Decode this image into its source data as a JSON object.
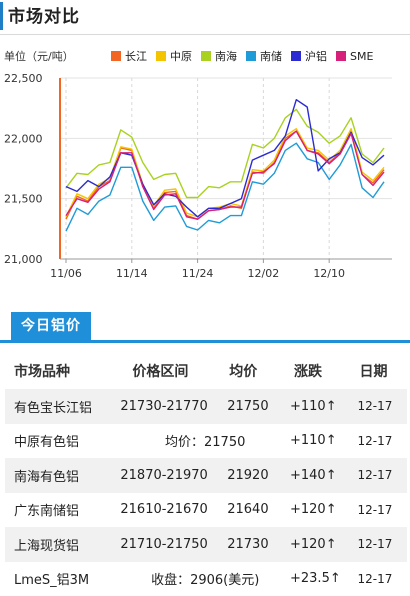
{
  "header": {
    "title": "市场对比"
  },
  "chart": {
    "unit_label": "单位（元/吨）",
    "legend": [
      {
        "name": "长江",
        "color": "#f26522"
      },
      {
        "name": "中原",
        "color": "#f5c400"
      },
      {
        "name": "南海",
        "color": "#a8d21f"
      },
      {
        "name": "南储",
        "color": "#1f9bd8"
      },
      {
        "name": "沪铝",
        "color": "#2b2bd1"
      },
      {
        "name": "SME",
        "color": "#d6207a"
      }
    ]
  },
  "chart_data": {
    "type": "line",
    "ylabel": "单位（元/吨）",
    "ylim": [
      21000,
      22500
    ],
    "yticks": [
      "21,000",
      "21,500",
      "22,000",
      "22,500"
    ],
    "ytick_values": [
      21000,
      21500,
      22000,
      22500
    ],
    "xtick_labels": [
      "11/06",
      "11/14",
      "11/24",
      "12/02",
      "12/10"
    ],
    "xtick_index": [
      0,
      6,
      12,
      18,
      24
    ],
    "grid": true,
    "legend_position": "top",
    "series": [
      {
        "name": "长江",
        "color": "#f26522",
        "values": [
          21330,
          21520,
          21480,
          21600,
          21650,
          21920,
          21900,
          21600,
          21420,
          21550,
          21560,
          21360,
          21330,
          21400,
          21410,
          21440,
          21420,
          21720,
          21710,
          21800,
          22000,
          22060,
          21900,
          21880,
          21800,
          21880,
          22060,
          21700,
          21630,
          21740
        ]
      },
      {
        "name": "中原",
        "color": "#f5c400",
        "values": [
          21350,
          21540,
          21500,
          21620,
          21670,
          21930,
          21910,
          21620,
          21440,
          21570,
          21580,
          21380,
          21350,
          21420,
          21430,
          21460,
          21440,
          21740,
          21730,
          21820,
          22020,
          22080,
          21920,
          21900,
          21820,
          21900,
          22080,
          21720,
          21650,
          21760
        ]
      },
      {
        "name": "南海",
        "color": "#a8d21f",
        "values": [
          21590,
          21710,
          21700,
          21780,
          21800,
          22070,
          22010,
          21800,
          21660,
          21700,
          21710,
          21510,
          21510,
          21600,
          21590,
          21640,
          21640,
          21950,
          21920,
          22000,
          22170,
          22240,
          22100,
          22050,
          21960,
          22020,
          22170,
          21870,
          21800,
          21920
        ]
      },
      {
        "name": "南储",
        "color": "#1f9bd8",
        "values": [
          21230,
          21420,
          21370,
          21480,
          21530,
          21760,
          21760,
          21480,
          21320,
          21430,
          21440,
          21270,
          21240,
          21320,
          21300,
          21360,
          21360,
          21640,
          21620,
          21710,
          21900,
          21960,
          21830,
          21800,
          21660,
          21780,
          21950,
          21590,
          21510,
          21640
        ]
      },
      {
        "name": "沪铝",
        "color": "#2b2bd1",
        "values": [
          21600,
          21560,
          21650,
          21600,
          21680,
          21880,
          21860,
          21620,
          21450,
          21540,
          21520,
          21430,
          21350,
          21420,
          21420,
          21460,
          21500,
          21820,
          21860,
          21900,
          22020,
          22320,
          22260,
          21730,
          21830,
          21880,
          22050,
          21840,
          21780,
          21860
        ]
      },
      {
        "name": "SME",
        "color": "#d6207a",
        "values": [
          21360,
          21500,
          21470,
          21580,
          21640,
          21880,
          21880,
          21600,
          21410,
          21530,
          21540,
          21350,
          21330,
          21400,
          21410,
          21430,
          21430,
          21710,
          21720,
          21790,
          21980,
          22060,
          21900,
          21870,
          21790,
          21870,
          22040,
          21700,
          21610,
          21720
        ]
      }
    ]
  },
  "today": {
    "tab_label": "今日铝价",
    "columns": [
      "市场品种",
      "价格区间",
      "均价",
      "涨跌",
      "日期"
    ],
    "rows": [
      {
        "name": "有色宝长江铝",
        "range": "21730-21770",
        "avg": "21750",
        "change": "+110",
        "arrow": "↑",
        "date": "12-17"
      },
      {
        "name": "中原有色铝",
        "range": "",
        "avg": "",
        "merged": "均价：21750",
        "change": "+110",
        "arrow": "↑",
        "date": "12-17"
      },
      {
        "name": "南海有色铝",
        "range": "21870-21970",
        "avg": "21920",
        "change": "+140",
        "arrow": "↑",
        "date": "12-17"
      },
      {
        "name": "广东南储铝",
        "range": "21610-21670",
        "avg": "21640",
        "change": "+120",
        "arrow": "↑",
        "date": "12-17"
      },
      {
        "name": "上海现货铝",
        "range": "21710-21750",
        "avg": "21730",
        "change": "+120",
        "arrow": "↑",
        "date": "12-17"
      },
      {
        "name": "LmeS_铝3M",
        "range": "",
        "avg": "",
        "merged": "收盘：2906(美元)",
        "change": "+23.5",
        "arrow": "↑",
        "date": "12-17"
      }
    ]
  }
}
